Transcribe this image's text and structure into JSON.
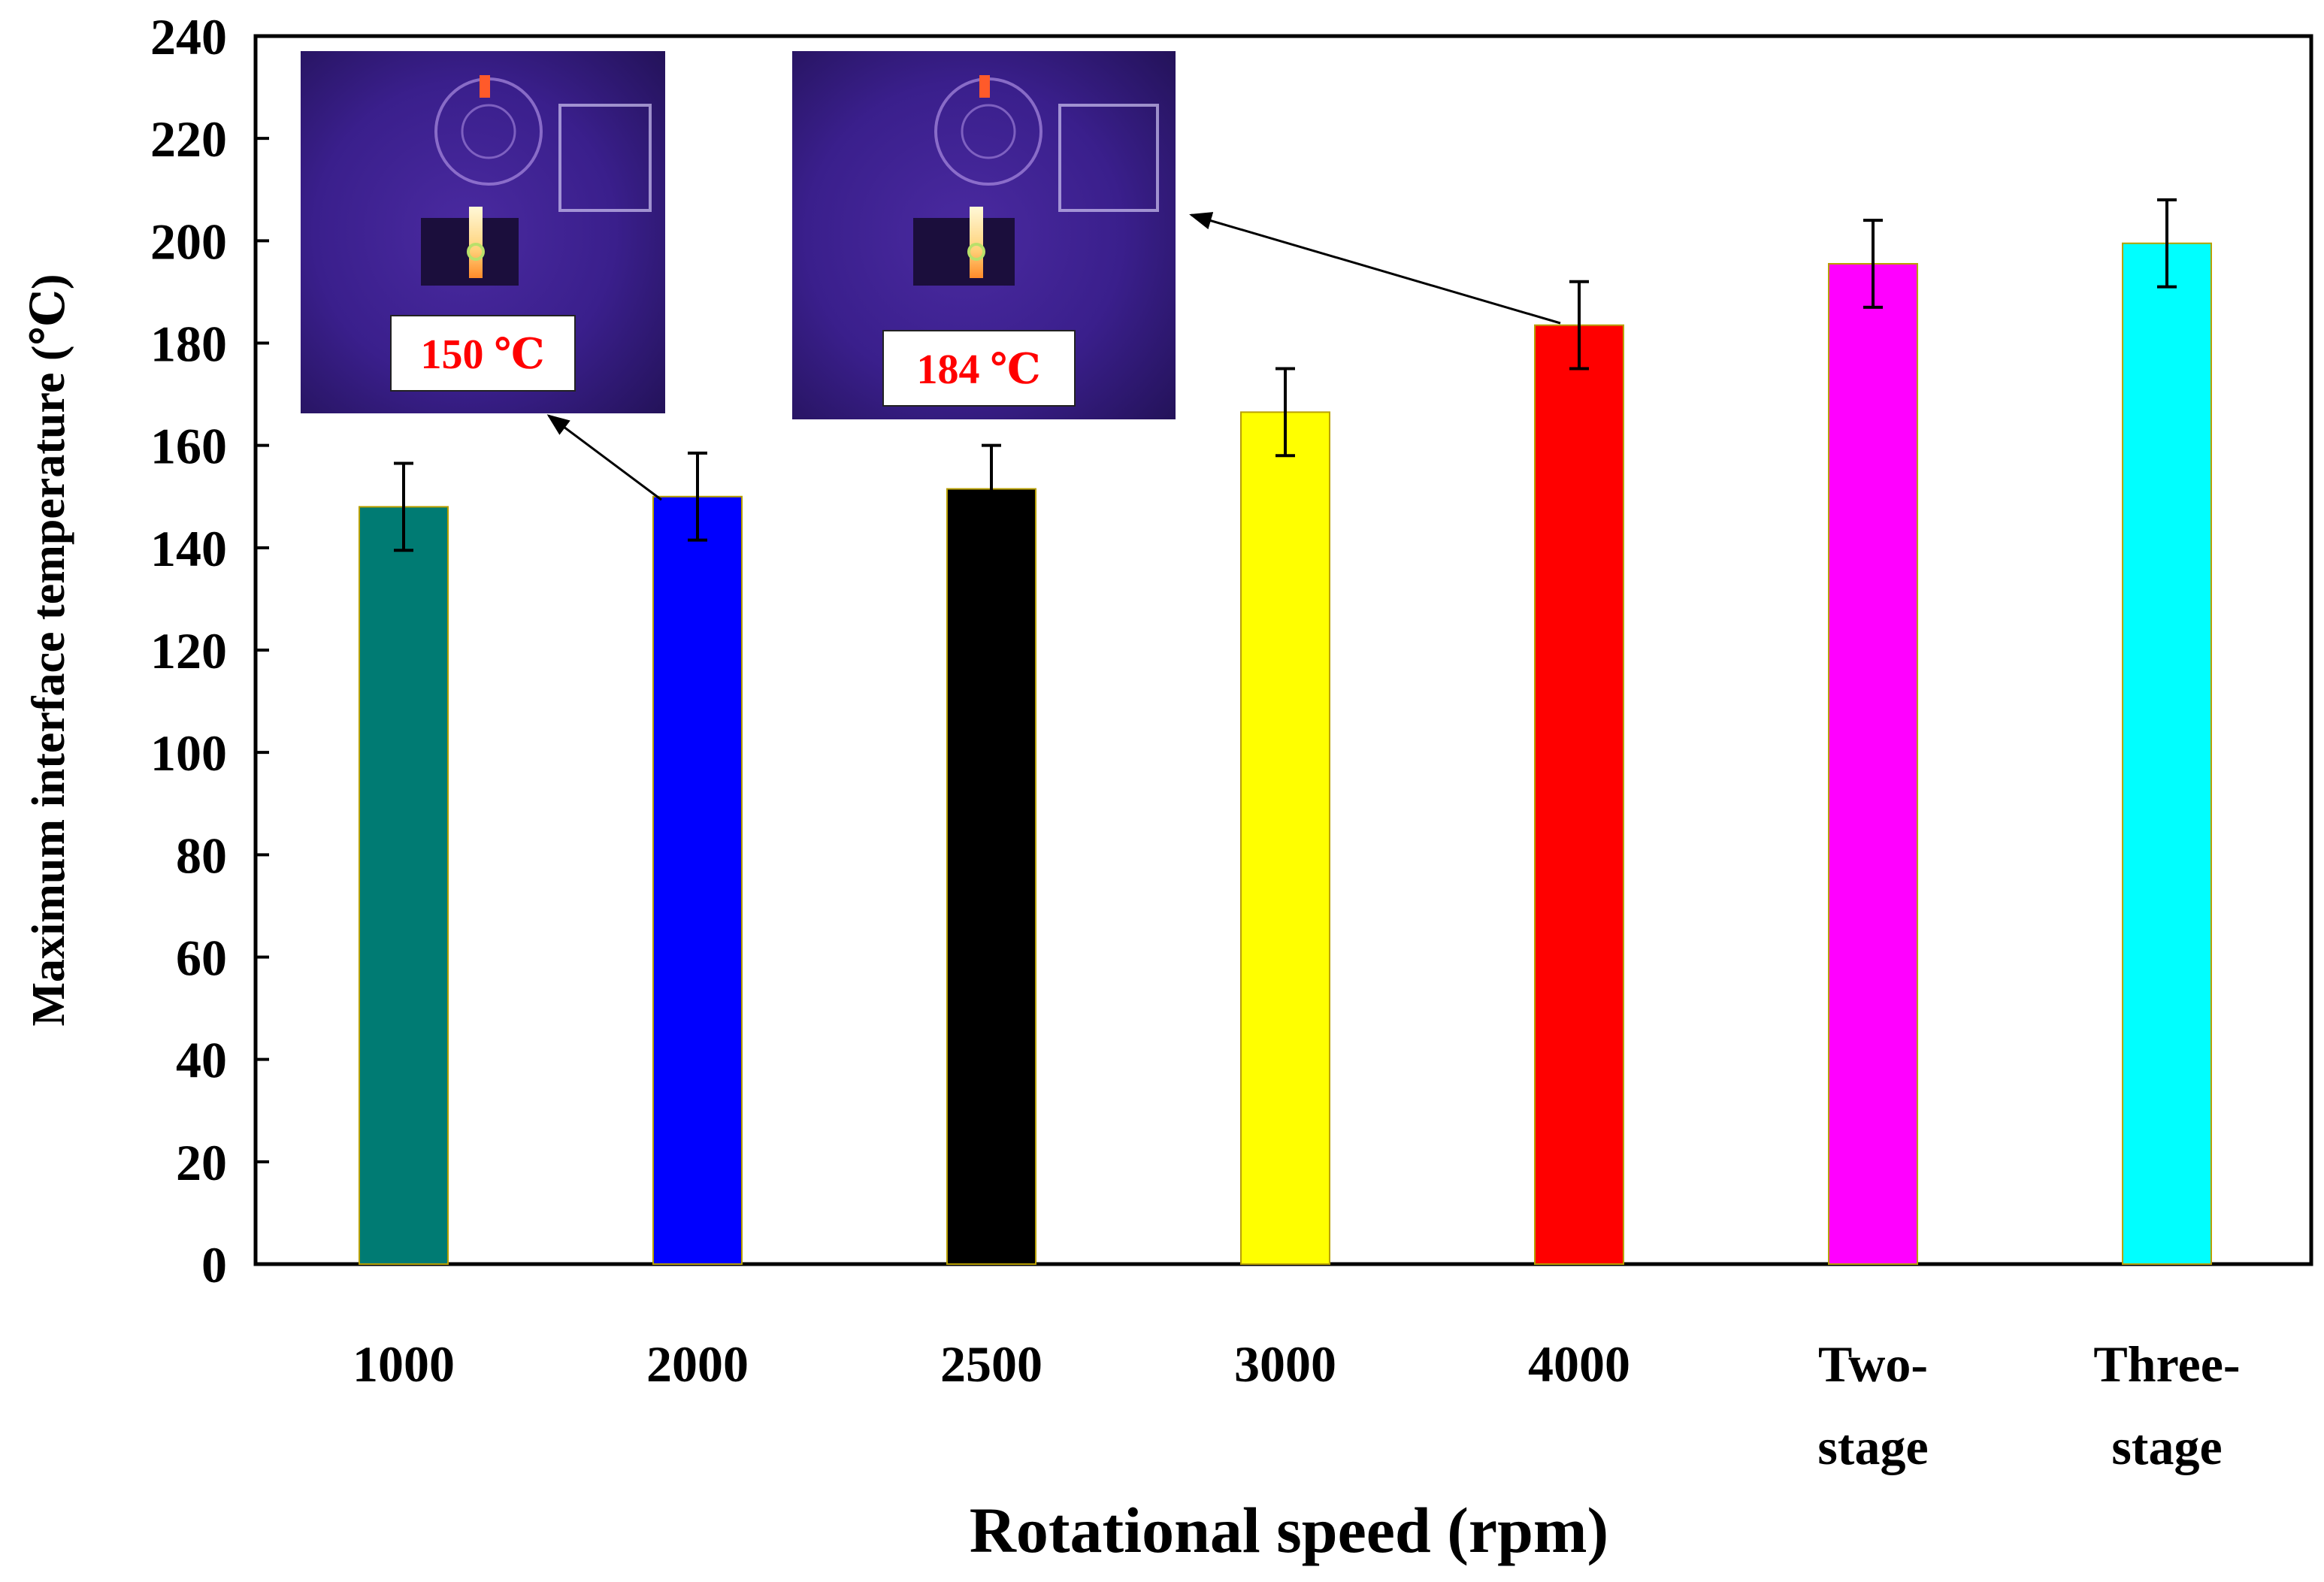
{
  "chart_data": {
    "type": "bar",
    "title": "",
    "xlabel": "Rotational speed (rpm)",
    "ylabel": "Maximum interface temperature (℃)",
    "ylim": [
      0,
      240
    ],
    "yticks": [
      0,
      20,
      40,
      60,
      80,
      100,
      120,
      140,
      160,
      180,
      200,
      220,
      240
    ],
    "grid": false,
    "categories": [
      {
        "line1": "1000",
        "line2": ""
      },
      {
        "line1": "2000",
        "line2": ""
      },
      {
        "line1": "2500",
        "line2": ""
      },
      {
        "line1": "3000",
        "line2": ""
      },
      {
        "line1": "4000",
        "line2": ""
      },
      {
        "line1": "Two-",
        "line2": "stage"
      },
      {
        "line1": "Three-",
        "line2": "stage"
      }
    ],
    "values": [
      148,
      150,
      151.5,
      166.5,
      183.5,
      195.5,
      199.5
    ],
    "errors": [
      8.5,
      8.5,
      8.5,
      8.5,
      8.5,
      8.5,
      8.5
    ],
    "colors": [
      "#007b73",
      "#0000ff",
      "#000000",
      "#ffff00",
      "#ff0000",
      "#ff00ff",
      "#00ffff"
    ],
    "annotations": [
      {
        "label": "150 ℃",
        "points_to_category": "2000"
      },
      {
        "label": "184 ℃",
        "points_to_category": "4000"
      }
    ]
  }
}
